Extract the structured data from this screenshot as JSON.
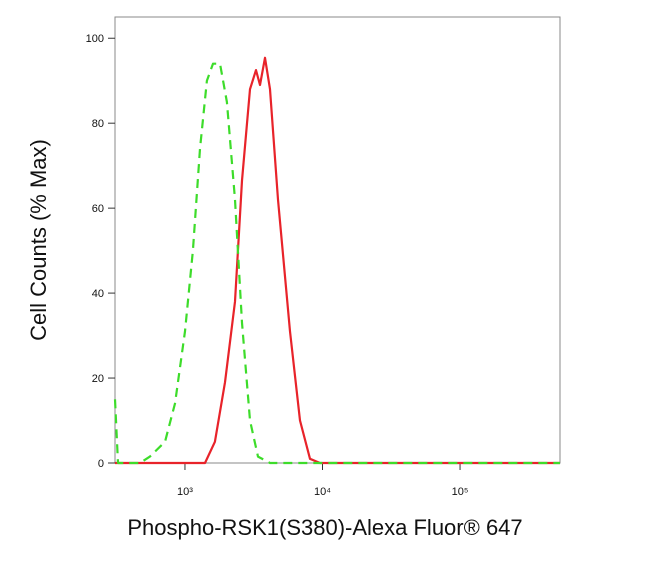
{
  "chart_data": {
    "type": "line",
    "xlabel": "Phospho-RSK1(S380)-Alexa Fluor® 647",
    "ylabel": "Cell Counts (% Max)",
    "xscale": "log",
    "xlim": [
      310,
      533000
    ],
    "ylim": [
      0,
      105
    ],
    "xticks": [
      {
        "value": 1000,
        "label": "10³"
      },
      {
        "value": 10000,
        "label": "10⁴"
      },
      {
        "value": 100000,
        "label": "10⁵"
      }
    ],
    "yticks": [
      0,
      20,
      40,
      60,
      80,
      100
    ],
    "series": [
      {
        "color": "#e8232a",
        "dash": "solid",
        "x": [
          310,
          1200,
          1398,
          1652,
          1954,
          2310,
          2600,
          2972,
          3283,
          3511,
          3816,
          4150,
          4745,
          5804,
          6860,
          8110,
          9590,
          533000
        ],
        "values": [
          0,
          0,
          0,
          5,
          19,
          38,
          66.5,
          88,
          92.5,
          89,
          95.4,
          88,
          62,
          31,
          10,
          1,
          0,
          0
        ]
      },
      {
        "color": "#3ddc2a",
        "dash": "dashed",
        "x": [
          310,
          326,
          366,
          471,
          556,
          716,
          846,
          1000,
          1143,
          1286,
          1445,
          1599,
          1798,
          2019,
          2310,
          2600,
          2972,
          3396,
          4150,
          533000
        ],
        "values": [
          15,
          0,
          0,
          0,
          1.5,
          5,
          14,
          31,
          50,
          74,
          90,
          94,
          94,
          85,
          62,
          33,
          10,
          1.5,
          0,
          0
        ]
      }
    ]
  }
}
